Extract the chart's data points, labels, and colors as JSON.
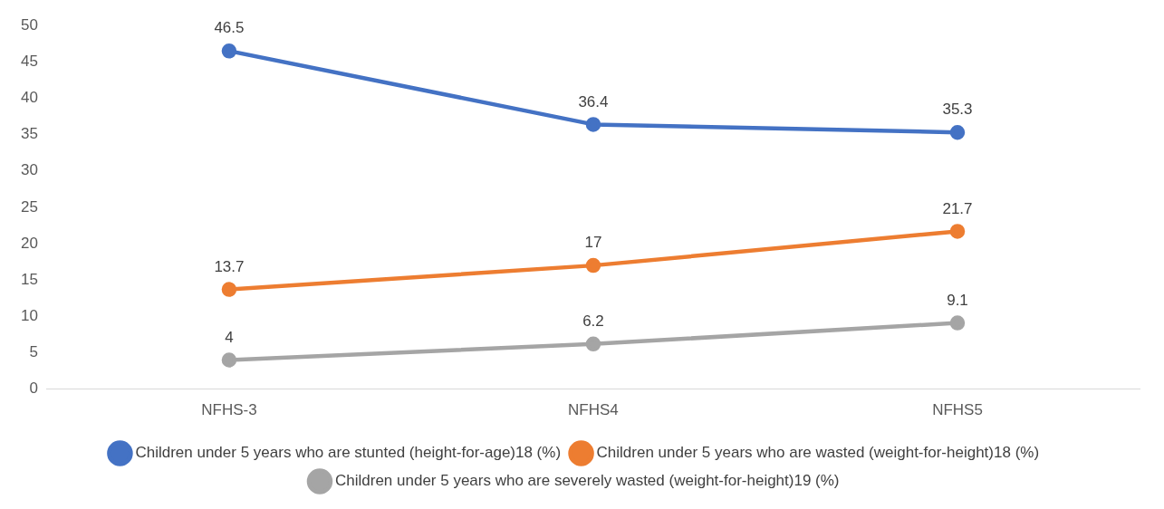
{
  "chart_data": {
    "type": "line",
    "categories": [
      "NFHS-3",
      "NFHS4",
      "NFHS5"
    ],
    "series": [
      {
        "name": "Children under 5 years who are stunted (height-for-age)18 (%)",
        "color": "#4472c4",
        "values": [
          46.5,
          36.4,
          35.3
        ]
      },
      {
        "name": "Children under 5 years who are wasted (weight-for-height)18 (%)",
        "color": "#ed7d31",
        "values": [
          13.7,
          17,
          21.7
        ]
      },
      {
        "name": "Children under 5 years who are severely wasted (weight-for-height)19 (%)",
        "color": "#a5a5a5",
        "values": [
          4,
          6.2,
          9.1
        ]
      }
    ],
    "ylim": [
      0,
      50
    ],
    "yticks": [
      0,
      5,
      10,
      15,
      20,
      25,
      30,
      35,
      40,
      45,
      50
    ],
    "grid": false,
    "legend": "bottom",
    "marker": "circle",
    "line_style": "solid",
    "data_labels": true
  }
}
